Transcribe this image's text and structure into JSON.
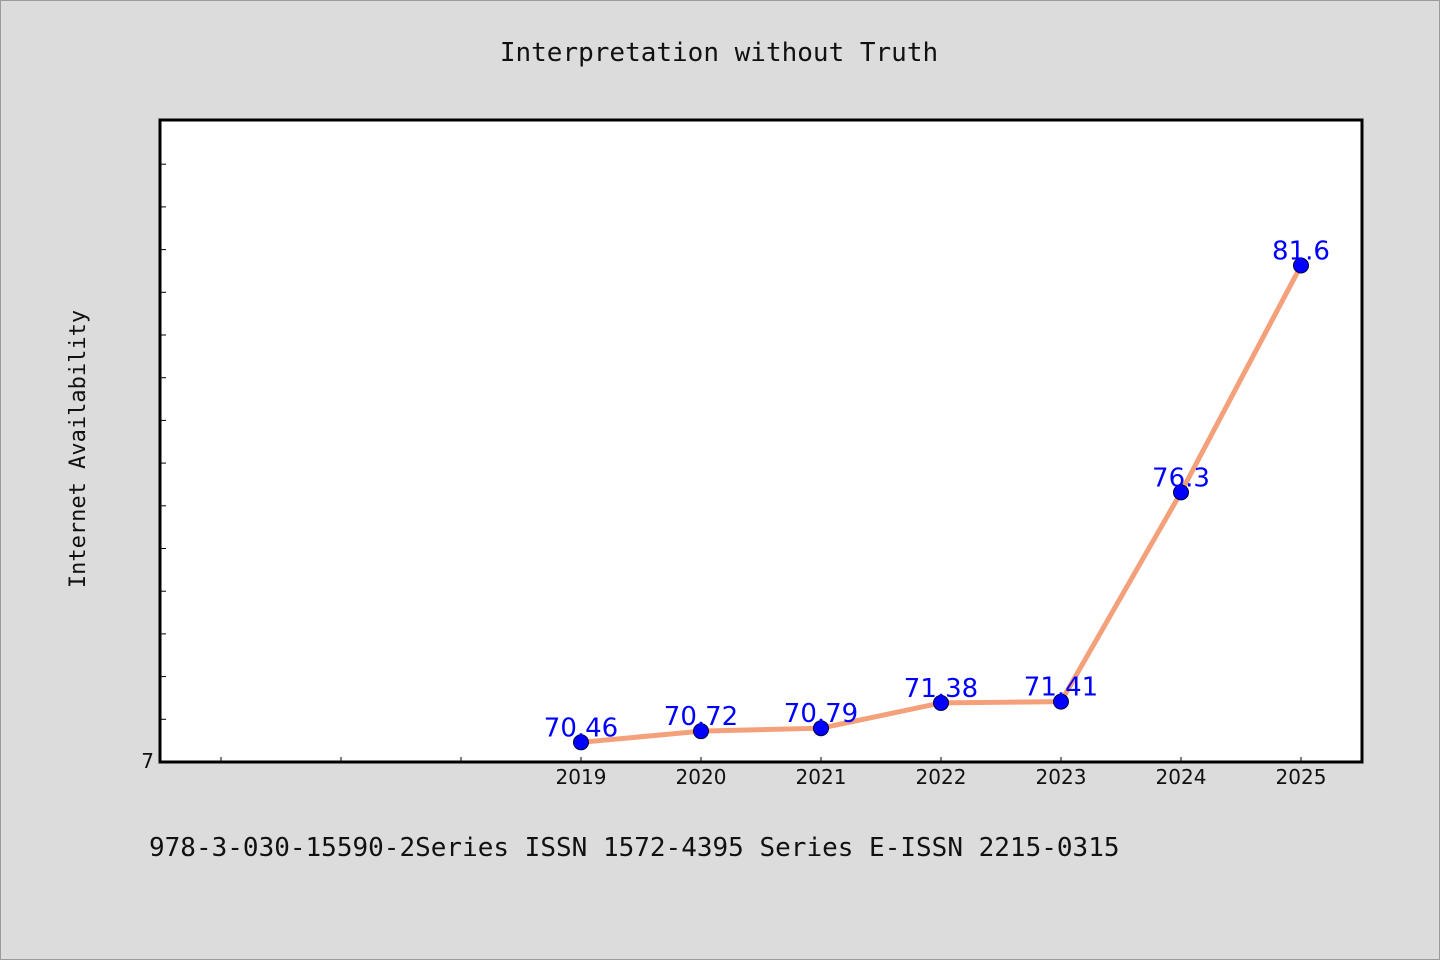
{
  "chart_data": {
    "type": "line",
    "title": "Interpretation without Truth",
    "xlabel": "",
    "ylabel": "Internet Availability",
    "categories": [
      "2019",
      "2020",
      "2021",
      "2022",
      "2023",
      "2024",
      "2025"
    ],
    "series": [
      {
        "values": [
          70.46,
          70.72,
          70.79,
          71.38,
          71.41,
          76.3,
          81.6
        ],
        "labels": [
          "70.46",
          "70.72",
          "70.79",
          "71.38",
          "71.41",
          "76.3",
          "81.6"
        ],
        "line_color": "#f4a07a",
        "marker_color": "#0000ff"
      }
    ],
    "ylim": [
      70,
      85
    ],
    "y_tick_labels": [
      "7"
    ],
    "grid": false,
    "legend": "none"
  },
  "footer": {
    "text": "978-3-030-15590-2Series ISSN 1572-4395 Series E-ISSN 2215-0315"
  },
  "colors": {
    "background": "#dcdcdc",
    "plot_background": "#ffffff",
    "data_label": "#0000ff"
  }
}
